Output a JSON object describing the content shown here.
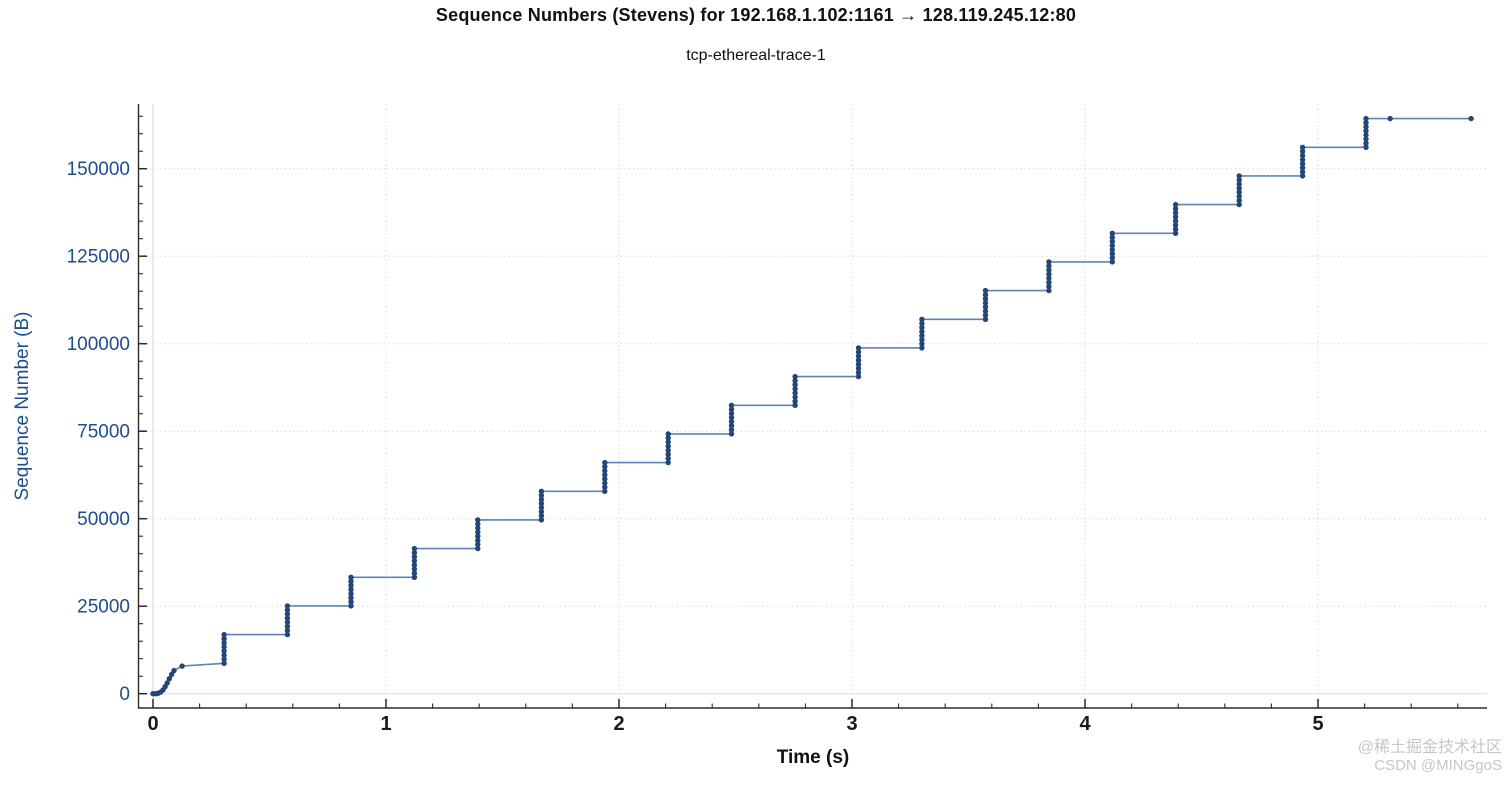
{
  "header": {
    "title": "Sequence Numbers (Stevens) for 192.168.1.102:1161 → 128.119.245.12:80",
    "subtitle": "tcp-ethereal-trace-1"
  },
  "watermark": {
    "line1": "@稀土掘金技术社区",
    "line2": "CSDN @MINGgoS"
  },
  "chart_data": {
    "type": "scatter",
    "title": "Sequence Numbers (Stevens) for 192.168.1.102:1161 → 128.119.245.12:80",
    "subtitle": "tcp-ethereal-trace-1",
    "xlabel": "Time (s)",
    "ylabel": "Sequence Number (B)",
    "xlim": [
      0,
      5.73
    ],
    "ylim": [
      0,
      170000
    ],
    "xticks": [
      0,
      1,
      2,
      3,
      4,
      5
    ],
    "x_minor_step": 0.2,
    "yticks": [
      0,
      25000,
      50000,
      75000,
      100000,
      125000,
      150000
    ],
    "y_minor_step": 5000,
    "grid": true,
    "legend": null,
    "colors": {
      "dot": "#224677",
      "line": "#5d84b4",
      "axis": "#2b2b2b",
      "x_tick_label": "#1a1a1a",
      "y_tick_label": "#1d4e8c",
      "grid": "#d9d9d9",
      "zero_grid": "#e5e5e5"
    },
    "slow_start_points": [
      [
        0.0,
        0
      ],
      [
        0.012,
        0
      ],
      [
        0.022,
        150
      ],
      [
        0.033,
        450
      ],
      [
        0.043,
        1050
      ],
      [
        0.052,
        2000
      ],
      [
        0.061,
        3050
      ],
      [
        0.07,
        4300
      ],
      [
        0.08,
        5500
      ],
      [
        0.09,
        6600
      ],
      [
        0.125,
        7900
      ]
    ],
    "dots_per_burst": 8,
    "bursts": [
      {
        "t": 0.305,
        "from": 8700,
        "to": 16890
      },
      {
        "t": 0.577,
        "from": 16890,
        "to": 25080
      },
      {
        "t": 0.85,
        "from": 25080,
        "to": 33270
      },
      {
        "t": 1.122,
        "from": 33270,
        "to": 41460
      },
      {
        "t": 1.394,
        "from": 41460,
        "to": 49650
      },
      {
        "t": 1.667,
        "from": 49650,
        "to": 57840
      },
      {
        "t": 1.939,
        "from": 57840,
        "to": 66030
      },
      {
        "t": 2.211,
        "from": 66030,
        "to": 74220
      },
      {
        "t": 2.483,
        "from": 74220,
        "to": 82410
      },
      {
        "t": 2.756,
        "from": 82410,
        "to": 90600
      },
      {
        "t": 3.028,
        "from": 90600,
        "to": 98790
      },
      {
        "t": 3.3,
        "from": 98790,
        "to": 106980
      },
      {
        "t": 3.573,
        "from": 106980,
        "to": 115170
      },
      {
        "t": 3.845,
        "from": 115170,
        "to": 123360
      },
      {
        "t": 4.117,
        "from": 123360,
        "to": 131550
      },
      {
        "t": 4.389,
        "from": 131550,
        "to": 139740
      },
      {
        "t": 4.662,
        "from": 139740,
        "to": 147930
      },
      {
        "t": 4.934,
        "from": 147930,
        "to": 156120
      },
      {
        "t": 5.206,
        "from": 156120,
        "to": 164310
      }
    ],
    "tail_points": [
      [
        5.31,
        164310
      ],
      [
        5.657,
        164310
      ]
    ]
  }
}
